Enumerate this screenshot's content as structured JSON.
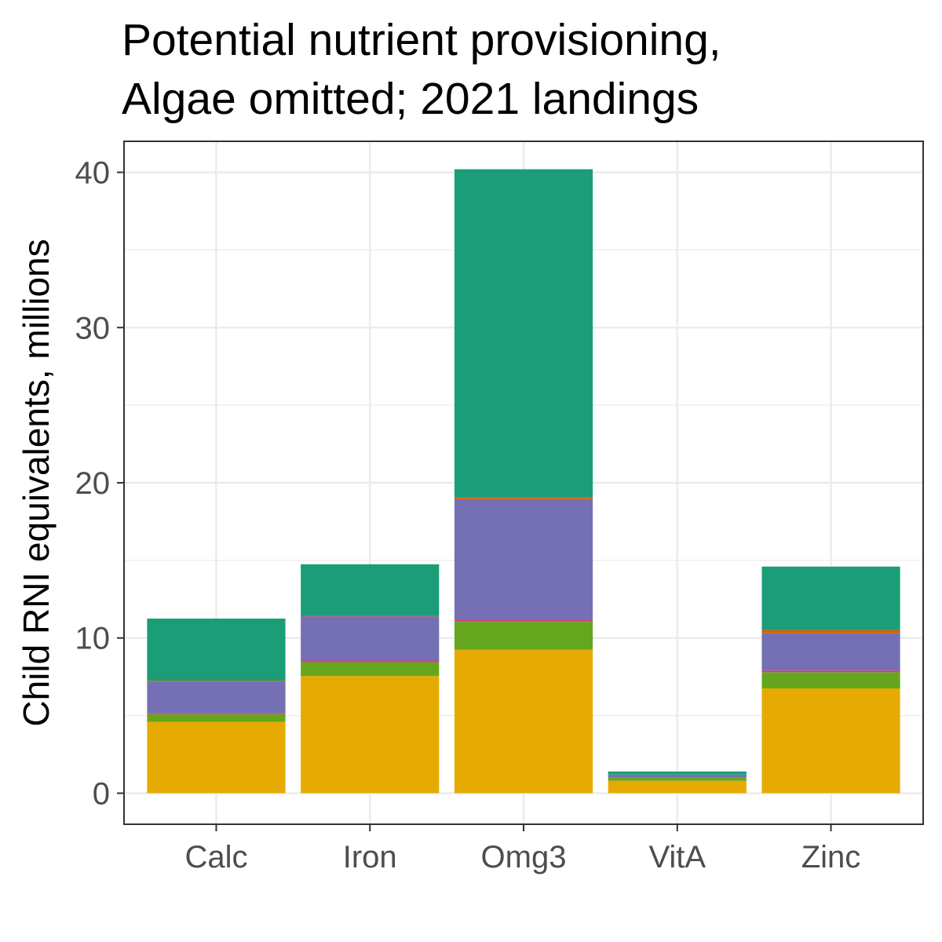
{
  "chart_data": {
    "type": "bar",
    "stacked": true,
    "title": "Potential nutrient provisioning,",
    "subtitle": "Algae omitted; 2021 landings",
    "xlabel": "",
    "ylabel": "Child RNI equivalents, millions",
    "categories": [
      "Calc",
      "Iron",
      "Omg3",
      "VitA",
      "Zinc"
    ],
    "ylim": [
      -2,
      42
    ],
    "yticks": [
      0,
      10,
      20,
      30,
      40
    ],
    "grid": true,
    "legend": "none",
    "series": [
      {
        "color": "#E6AB02",
        "values": [
          4.6,
          7.55,
          9.25,
          0.8,
          6.75
        ]
      },
      {
        "color": "#66A61E",
        "values": [
          0.5,
          0.9,
          1.85,
          0.2,
          1.05
        ]
      },
      {
        "color": "#E7298A",
        "values": [
          0.05,
          0.1,
          0.05,
          0.0,
          0.1
        ]
      },
      {
        "color": "#7570B3",
        "values": [
          2.05,
          2.85,
          7.8,
          0.2,
          2.4
        ]
      },
      {
        "color": "#D95F02",
        "values": [
          0.05,
          0.05,
          0.1,
          0.0,
          0.2
        ]
      },
      {
        "color": "#1B9E77",
        "values": [
          4.0,
          3.3,
          21.15,
          0.2,
          4.1
        ]
      }
    ]
  }
}
